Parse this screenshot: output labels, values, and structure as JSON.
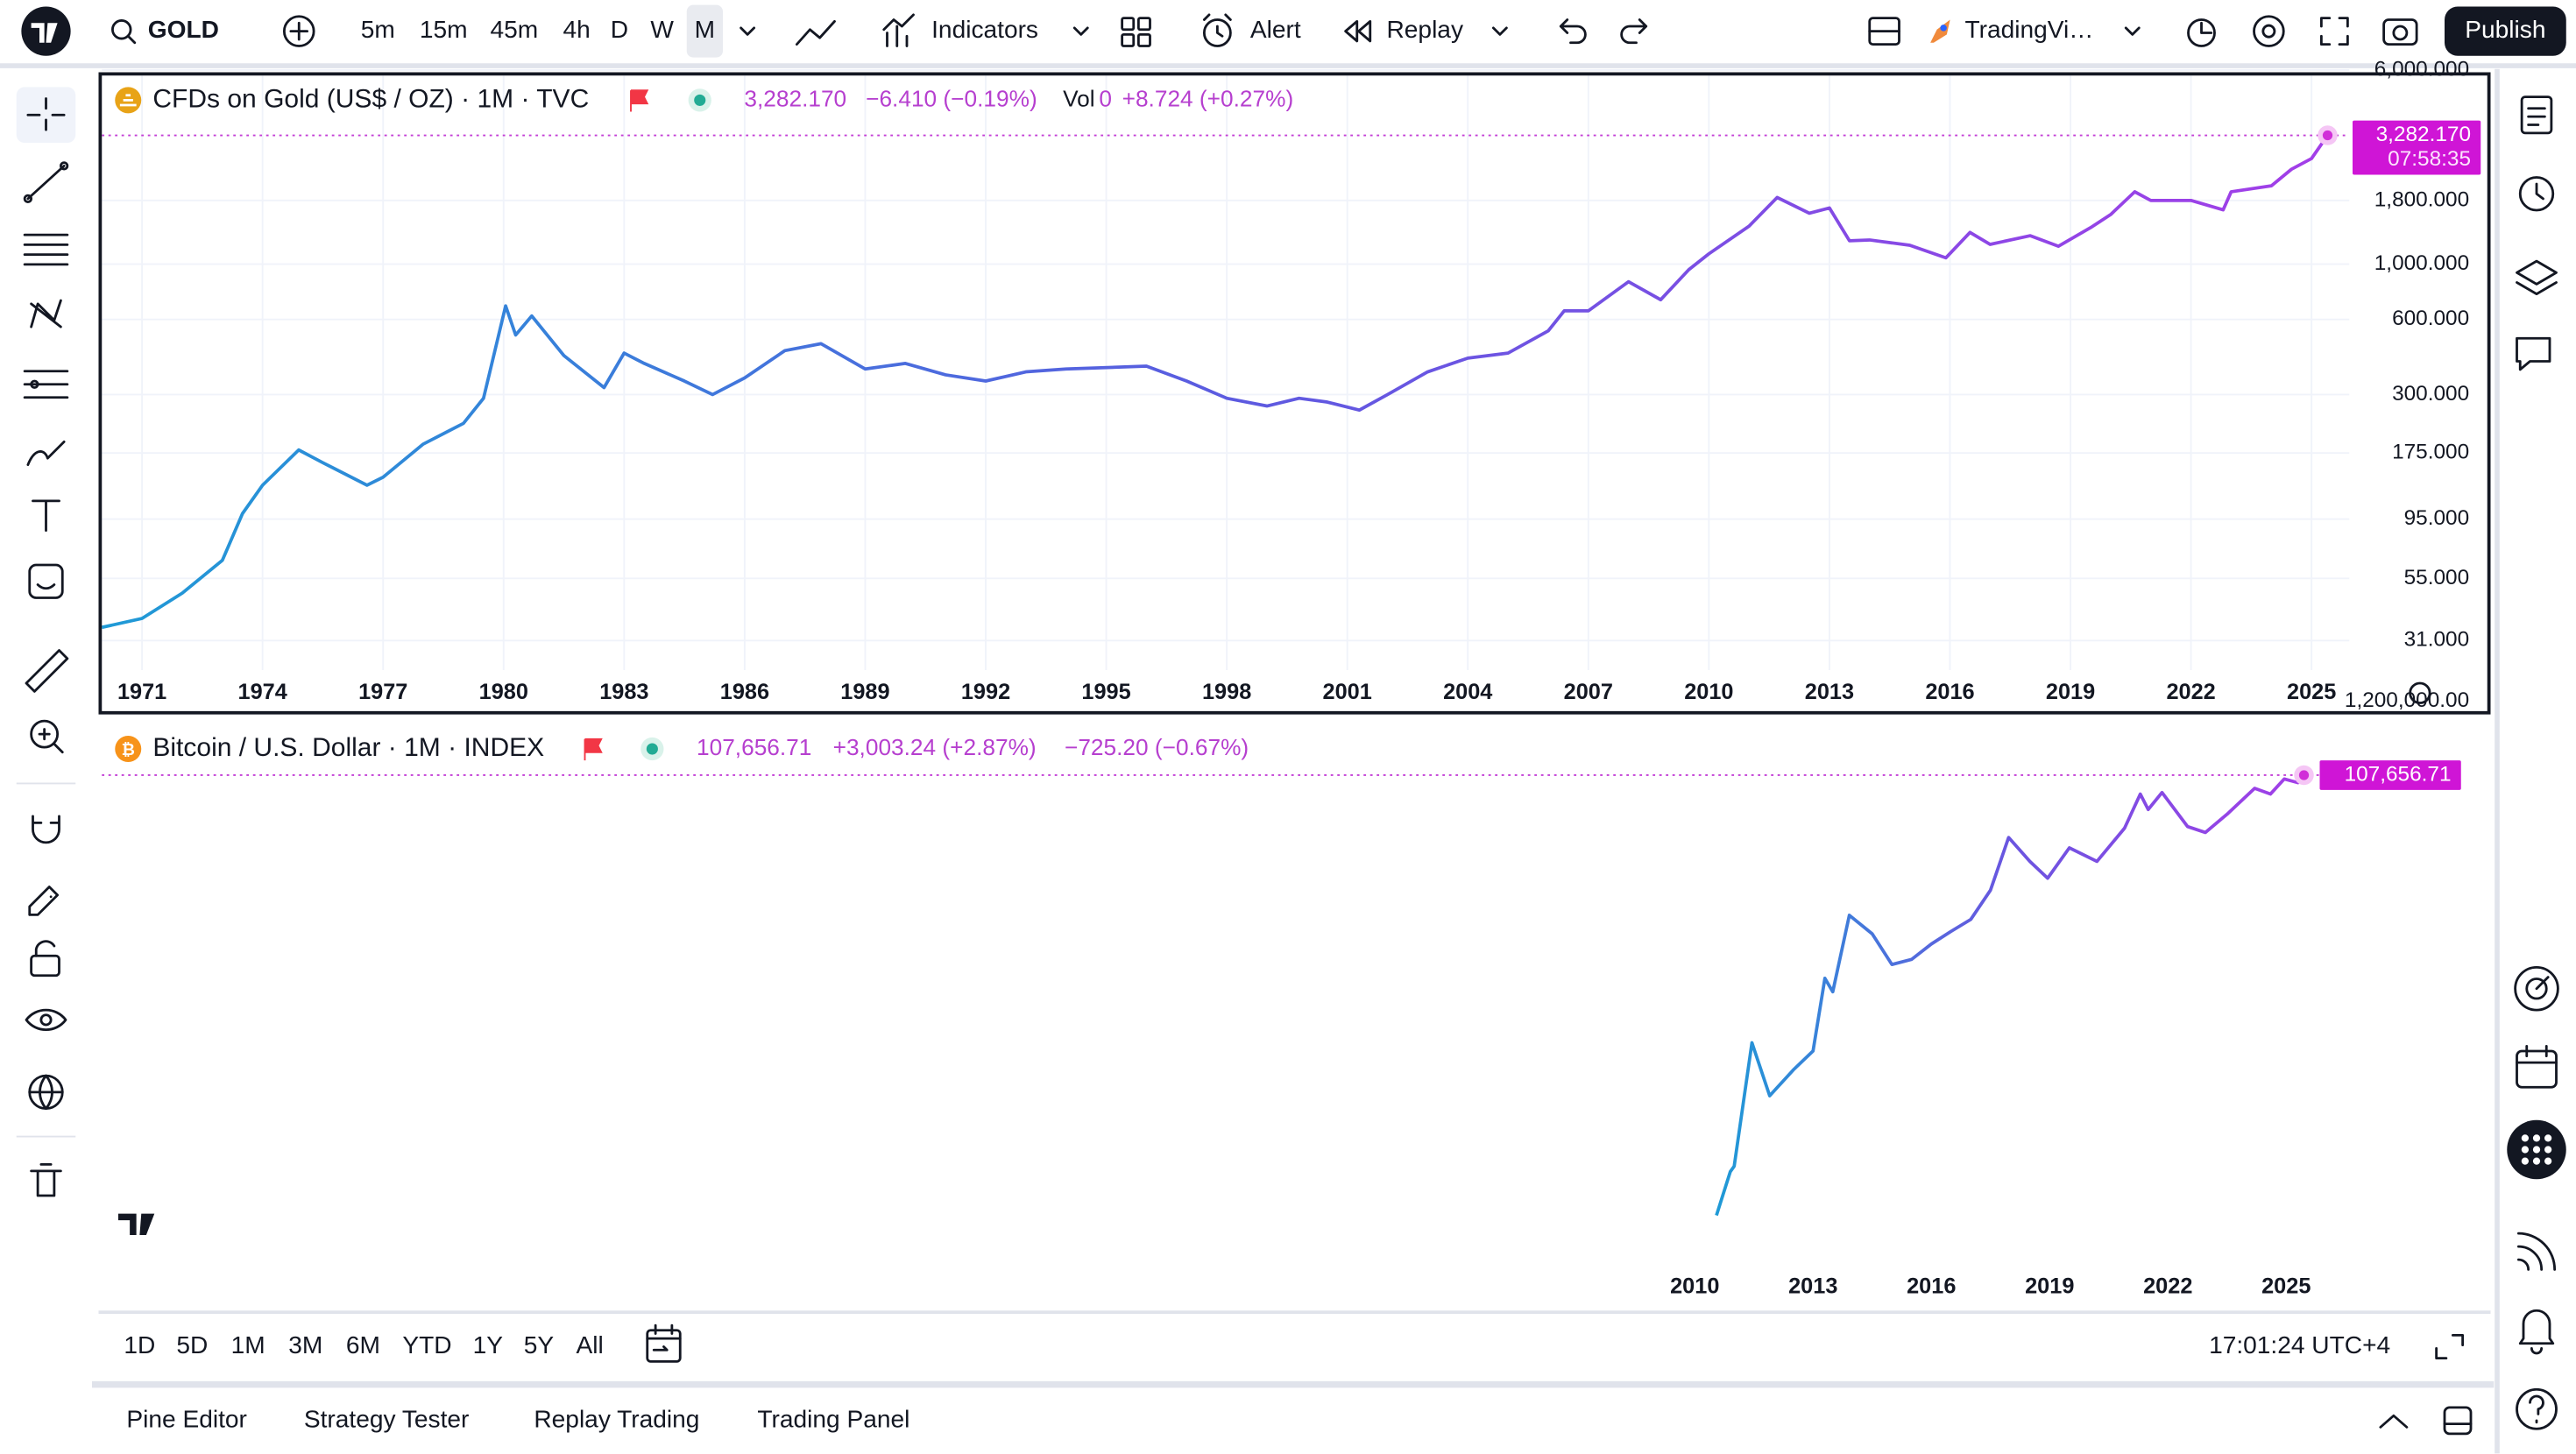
{
  "toolbar": {
    "symbol": "GOLD",
    "intervals": [
      "5m",
      "15m",
      "45m",
      "4h",
      "D",
      "W",
      "M"
    ],
    "indicators": "Indicators",
    "alert": "Alert",
    "replay": "Replay",
    "layout_name": "TradingVi…",
    "publish": "Publish"
  },
  "gold_chart": {
    "type": "line",
    "title": "CFDs on Gold (US$ / OZ) · 1M · TVC",
    "last": "3,282.170",
    "change": "−6.410 (−0.19%)",
    "vol_label": "Vol",
    "vol_value": 0,
    "vol_change": "+8.724 (+0.27%)",
    "price_tag": "3,282.170",
    "countdown": "07:58:35",
    "log_scale": true,
    "grid": true,
    "line_colors": [
      "#1f9ad6",
      "#5b5be0",
      "#a33ee8"
    ],
    "x": [
      1970,
      1971,
      1972,
      1973,
      1973.5,
      1974,
      1974.9,
      1975.5,
      1976.6,
      1977,
      1978,
      1979,
      1979.5,
      1980.05,
      1980.3,
      1980.7,
      1981.5,
      1982.5,
      1983,
      1983.5,
      1984.5,
      1985.2,
      1986,
      1987,
      1987.9,
      1989,
      1990,
      1991,
      1992,
      1993,
      1994,
      1996,
      1997,
      1998,
      1999,
      1999.8,
      2000.5,
      2001.3,
      2002,
      2003,
      2004,
      2005,
      2006,
      2006.4,
      2007,
      2008,
      2008.8,
      2009.5,
      2010,
      2011,
      2011.7,
      2012.5,
      2013,
      2013.5,
      2014,
      2015,
      2015.9,
      2016.5,
      2017,
      2018,
      2018.7,
      2019.5,
      2020,
      2020.6,
      2021,
      2022,
      2022.8,
      2023,
      2024,
      2024.5,
      2025,
      2025.4
    ],
    "values": [
      35,
      38,
      48,
      65,
      100,
      130,
      180,
      160,
      130,
      140,
      190,
      230,
      290,
      680,
      520,
      620,
      430,
      320,
      440,
      400,
      340,
      300,
      350,
      450,
      480,
      380,
      400,
      360,
      340,
      370,
      380,
      390,
      340,
      290,
      270,
      290,
      280,
      260,
      300,
      370,
      420,
      440,
      540,
      650,
      650,
      850,
      720,
      950,
      1100,
      1420,
      1850,
      1600,
      1680,
      1240,
      1250,
      1190,
      1060,
      1340,
      1200,
      1300,
      1180,
      1400,
      1580,
      1950,
      1800,
      1800,
      1650,
      1950,
      2060,
      2400,
      2650,
      3282.17
    ],
    "xlim": [
      1970,
      2025.94
    ],
    "ylim": [
      23.6,
      5700
    ],
    "xticks": [
      1971,
      1974,
      1977,
      1980,
      1983,
      1986,
      1989,
      1992,
      1995,
      1998,
      2001,
      2004,
      2007,
      2010,
      2013,
      2016,
      2019,
      2022,
      2025
    ],
    "yticks": [
      {
        "value": 31,
        "label": "31.000"
      },
      {
        "value": 55,
        "label": "55.000"
      },
      {
        "value": 95,
        "label": "95.000"
      },
      {
        "value": 175,
        "label": "175.000"
      },
      {
        "value": 300,
        "label": "300.000"
      },
      {
        "value": 600,
        "label": "600.000"
      },
      {
        "value": 1000,
        "label": "1,000.000"
      },
      {
        "value": 1800,
        "label": "1,800.000"
      },
      {
        "value": 6000,
        "label": "6,000.000"
      }
    ]
  },
  "bitcoin_chart": {
    "type": "line",
    "title": "Bitcoin / U.S. Dollar · 1M · INDEX",
    "last": "107,656.71",
    "change": "+3,003.24 (+2.87%)",
    "change_2": "−725.20 (−0.67%)",
    "price_tag": "107,656.71",
    "log_scale": true,
    "grid": false,
    "line_colors": [
      "#1f9ad6",
      "#6a55e0",
      "#a33ee8"
    ],
    "x": [
      2010.55,
      2010.9,
      2011.0,
      2011.45,
      2011.9,
      2012.5,
      2013.0,
      2013.3,
      2013.5,
      2013.92,
      2014.5,
      2015.0,
      2015.5,
      2016.0,
      2016.5,
      2017.0,
      2017.5,
      2017.96,
      2018.5,
      2018.95,
      2019.5,
      2020.2,
      2020.9,
      2021.3,
      2021.5,
      2021.85,
      2022.5,
      2022.95,
      2023.5,
      2024.2,
      2024.6,
      2024.95,
      2025.3,
      2025.45
    ],
    "values": [
      0.06,
      0.25,
      0.3,
      17,
      3,
      7,
      13,
      140,
      90,
      1100,
      600,
      220,
      260,
      430,
      650,
      960,
      2500,
      14000,
      6400,
      3700,
      10000,
      6400,
      19000,
      58000,
      35000,
      61000,
      20000,
      16500,
      30000,
      70000,
      58000,
      95000,
      84000,
      107656.71
    ],
    "xlim": [
      1969.6,
      2026.6
    ],
    "ylim": [
      0.012,
      600000
    ],
    "xticks": [
      2010,
      2013,
      2016,
      2019,
      2022,
      2025
    ],
    "yticks": [
      {
        "value": 1200000,
        "label": "1,200,000.00"
      }
    ]
  },
  "range_bar": {
    "ranges": [
      "1D",
      "5D",
      "1M",
      "3M",
      "6M",
      "YTD",
      "1Y",
      "5Y",
      "All"
    ],
    "clock": "17:01:24 UTC+4"
  },
  "bottom_tabs": [
    "Pine Editor",
    "Strategy Tester",
    "Replay Trading",
    "Trading Panel"
  ]
}
